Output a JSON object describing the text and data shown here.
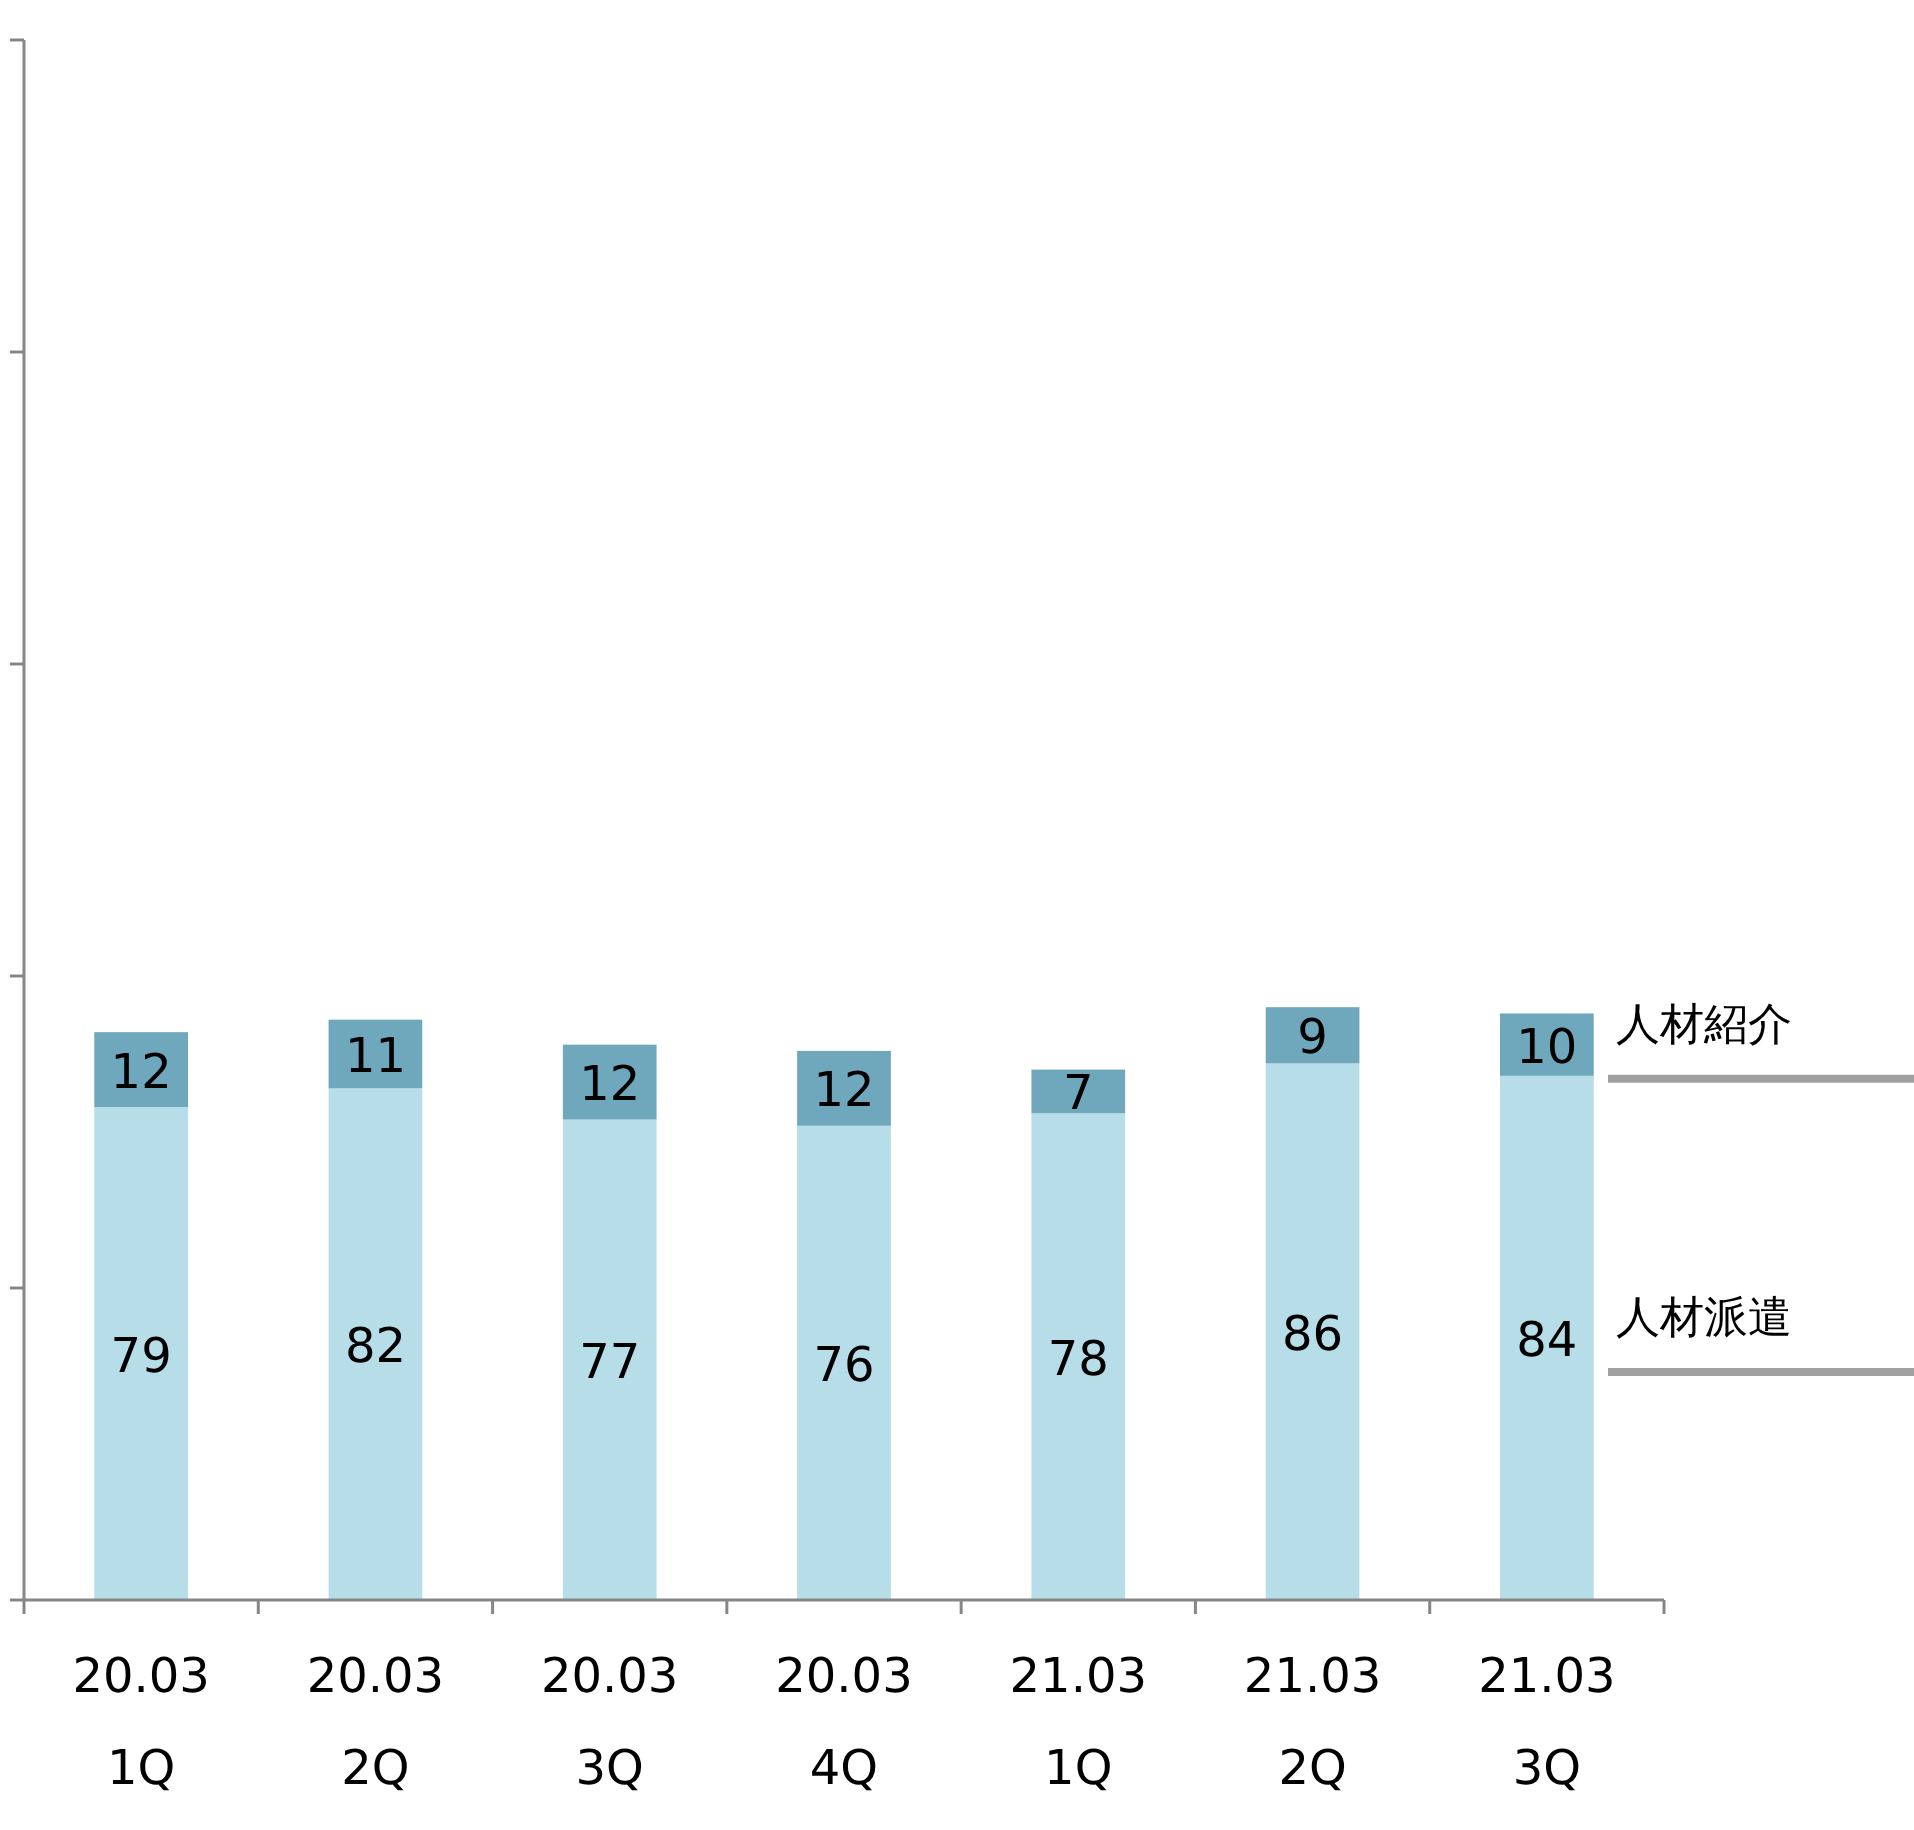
{
  "chart_data": {
    "type": "bar",
    "stacked": true,
    "categories": [
      "20.03\n1Q",
      "20.03\n2Q",
      "20.03\n3Q",
      "20.03\n4Q",
      "21.03\n1Q",
      "21.03\n2Q",
      "21.03\n3Q"
    ],
    "series": [
      {
        "name": "人材派遣",
        "color": "#b7dde8",
        "values": [
          79,
          82,
          77,
          76,
          78,
          86,
          84
        ]
      },
      {
        "name": "人材紹介",
        "color": "#6fa8bc",
        "values": [
          12,
          11,
          12,
          12,
          7,
          9,
          10
        ]
      }
    ],
    "ylim": [
      0,
      250
    ],
    "yticks": [
      {
        "value": 0,
        "label": null
      },
      {
        "value": 50,
        "label": null
      },
      {
        "value": 100,
        "label": null
      },
      {
        "value": 150,
        "label": null
      },
      {
        "value": 200,
        "label": null
      },
      {
        "value": 250,
        "label": null
      }
    ],
    "data_labels": true,
    "legend": "right",
    "grid": false
  }
}
